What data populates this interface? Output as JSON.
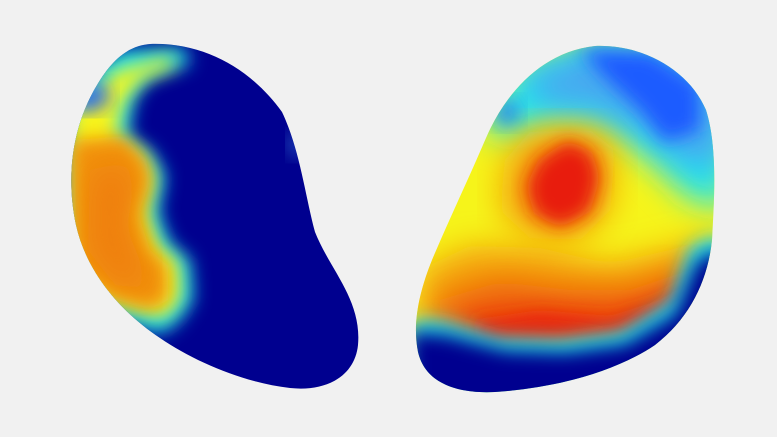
{
  "scene": {
    "background": "#f1f1f1",
    "colormap": "jet",
    "palette": {
      "deep_blue": "#00008f",
      "blue": "#1a5cff",
      "light_blue": "#4aa8f0",
      "cyan": "#1ee6f0",
      "yellow": "#f6f41a",
      "orange": "#f4a010",
      "dark_orange": "#ee7a0c",
      "red": "#e81e0a"
    }
  },
  "objects": [
    {
      "id": "left-heart-map",
      "dominant": "deep_blue",
      "secondary": "orange"
    },
    {
      "id": "right-heart-map",
      "dominant": "yellow",
      "secondary": "red"
    }
  ]
}
